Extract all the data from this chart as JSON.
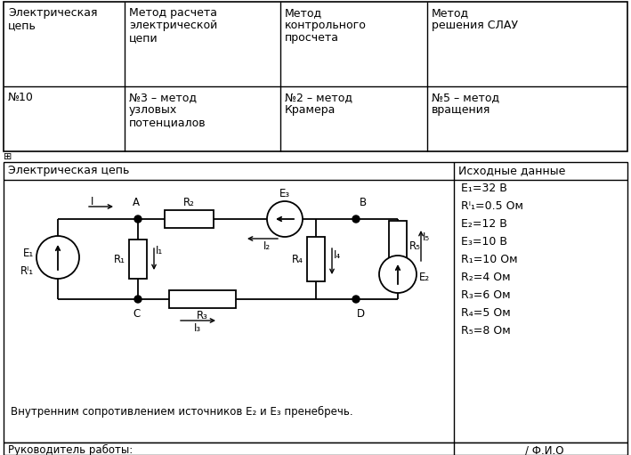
{
  "bg_color": "#ffffff",
  "table1_headers": [
    "Электрическая\nцепь",
    "Метод расчета\nэлектрической\nцепи",
    "Метод\nконтрольного\nпросчета",
    "Метод\nрешения СЛАУ"
  ],
  "table1_row": [
    "№10",
    "№3 – метод\nузловых\nпотенциалов",
    "№2 – метод\nКрамера",
    "№5 – метод\nвращения"
  ],
  "circuit_header_left": "Электрическая цепь",
  "circuit_header_right": "Исходные данные",
  "params": [
    "E₁=32 В",
    "Rᴵ₁=0.5 Ом",
    "E₂=12 В",
    "E₃=10 В",
    "R₁=10 Ом",
    "R₂=4 Ом",
    "R₃=6 Ом",
    "R₄=5 Ом",
    "R₅=8 Ом"
  ],
  "note": "Внутренним сопротивлением источников E₂ и E₃ пренебречь.",
  "bottom_left": "Руководитель работы:",
  "bottom_right": "/ Ф.И.О"
}
